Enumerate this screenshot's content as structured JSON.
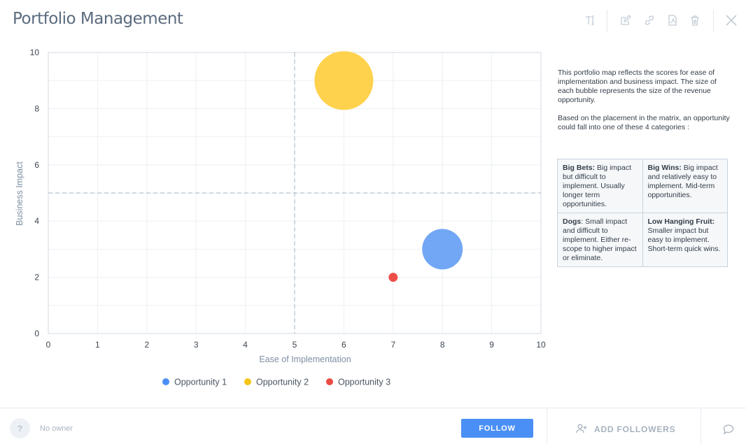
{
  "header": {
    "title": "Portfolio Management",
    "icons": [
      "text-format-icon",
      "edit-icon",
      "link-icon",
      "pdf-icon",
      "trash-icon",
      "close-icon"
    ]
  },
  "chart_data": {
    "type": "scatter",
    "subtype": "bubble",
    "xlabel": "Ease of Implementation",
    "ylabel": "Business Impact",
    "xlim": [
      0,
      10
    ],
    "ylim": [
      0,
      10
    ],
    "xticks": [
      0,
      1,
      2,
      3,
      4,
      5,
      6,
      7,
      8,
      9,
      10
    ],
    "yticks": [
      0,
      2,
      4,
      6,
      8,
      10
    ],
    "grid": true,
    "quadrant_lines": {
      "x": 5,
      "y": 5
    },
    "legend_position": "bottom",
    "series": [
      {
        "name": "Opportunity 1",
        "x": 8,
        "y": 3,
        "size": 20,
        "color": "#72a7f5"
      },
      {
        "name": "Opportunity 2",
        "x": 6,
        "y": 9,
        "size": 42,
        "color": "#ffd24d"
      },
      {
        "name": "Opportunity 3",
        "x": 7,
        "y": 2,
        "size": 1,
        "color": "#ef4e48"
      }
    ],
    "legend_colors": [
      "#4a8ff5",
      "#f5c518",
      "#ea4b42"
    ]
  },
  "description": {
    "p1": "This portfolio map reflects the scores for ease of implementation and business impact. The size of each bubble represents the size of the revenue opportunity.",
    "p2": "Based on the placement in the matrix, an opportunity could fall into one of these 4 categories :"
  },
  "categories": {
    "big_bets": {
      "name": "Big Bets:",
      "text": " Big impact but difficult to implement. Usually longer term opportunities."
    },
    "big_wins": {
      "name": "Big Wins:",
      "text": " Big impact and relatively easy to implement. Mid-term opportunities."
    },
    "dogs": {
      "name": "Dogs",
      "text": ": Small impact and difficult to implement. Either re-scope to higher impact or eliminate."
    },
    "low_hanging": {
      "name": "Low Hanging Fruit:",
      "text": " Smaller impact but easy to implement. Short-term quick wins."
    }
  },
  "footer": {
    "owner_avatar": "?",
    "owner_label": "No owner",
    "follow_label": "FOLLOW",
    "add_followers_label": "ADD FOLLOWERS"
  }
}
